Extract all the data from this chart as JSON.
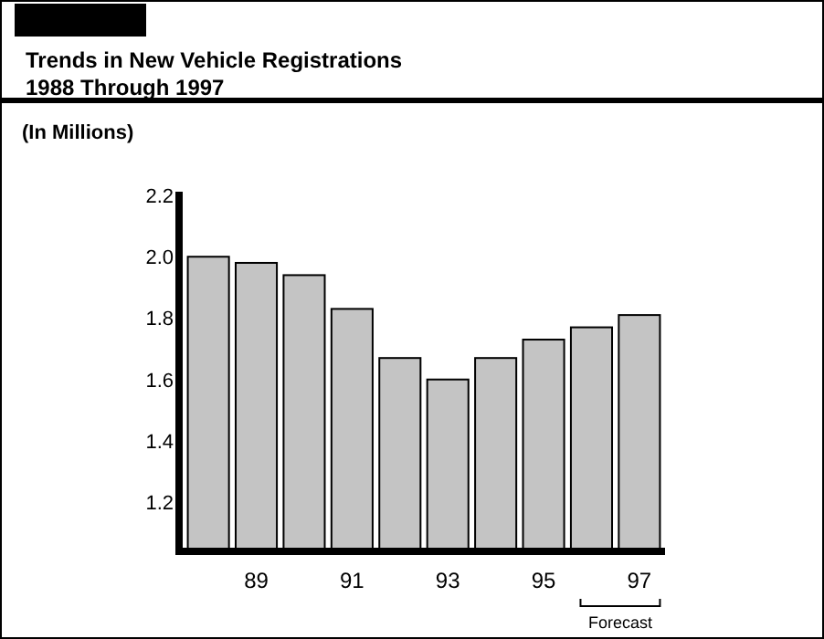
{
  "chart_data": {
    "type": "bar",
    "title": "Trends in New Vehicle Registrations\n1988 Through 1997",
    "ylabel": "(In Millions)",
    "categories": [
      null,
      "89",
      null,
      "91",
      null,
      "93",
      null,
      "95",
      null,
      "97"
    ],
    "values": [
      2.0,
      1.98,
      1.94,
      1.83,
      1.67,
      1.6,
      1.67,
      1.73,
      1.77,
      1.81
    ],
    "color": "#c4c4c4",
    "ylim": [
      1.04,
      2.2
    ],
    "yticks": [
      {
        "value": 1.2,
        "label": "1.2"
      },
      {
        "value": 1.4,
        "label": "1.4"
      },
      {
        "value": 1.6,
        "label": "1.6"
      },
      {
        "value": 1.8,
        "label": "1.8"
      },
      {
        "value": 2.0,
        "label": "2.0"
      },
      {
        "value": 2.2,
        "label": "2.2"
      }
    ],
    "grid": false,
    "annotations": [
      "Forecast"
    ]
  }
}
